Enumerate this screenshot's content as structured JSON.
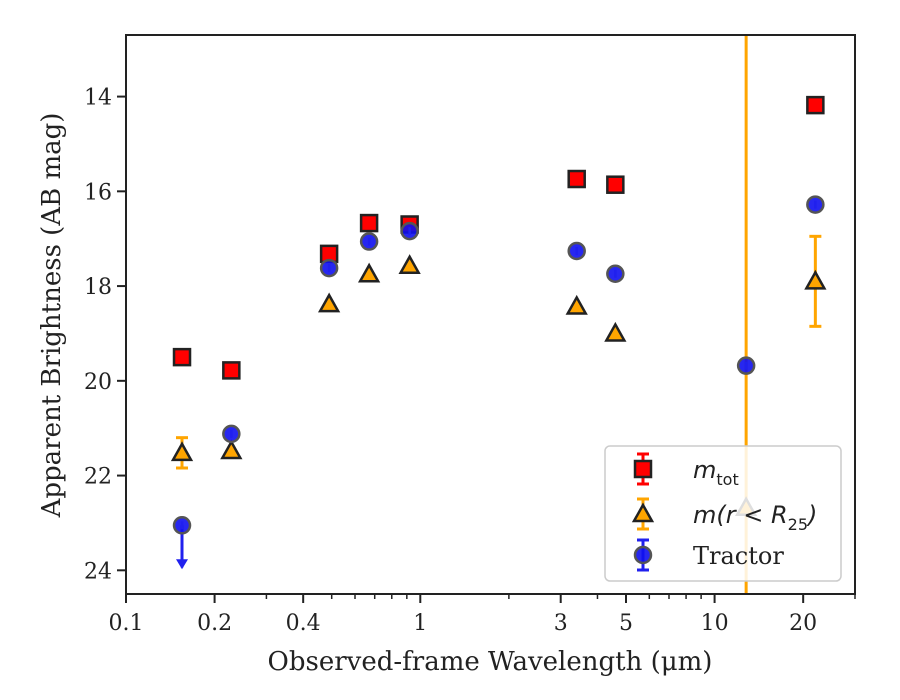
{
  "chart_data": {
    "type": "scatter",
    "title": "",
    "xlabel": "Observed-frame Wavelength (μm)",
    "ylabel": "Apparent Brightness (AB mag)",
    "xscale": "log",
    "xlim": [
      0.1,
      30
    ],
    "ylim": [
      24.5,
      12.7
    ],
    "y_inverted": true,
    "x_ticks": [
      0.1,
      0.2,
      0.4,
      1,
      3,
      5,
      10,
      20
    ],
    "x_tick_labels": [
      "0.1",
      "0.2",
      "0.4",
      "1",
      "3",
      "5",
      "10",
      "20"
    ],
    "y_ticks": [
      14,
      16,
      18,
      20,
      22,
      24
    ],
    "y_tick_labels": [
      "14",
      "16",
      "18",
      "20",
      "22",
      "24"
    ],
    "grid": false,
    "legend_position": "lower-right",
    "vertical_line": {
      "x": 12.8,
      "color": "#FFA500"
    },
    "series": [
      {
        "name": "m_tot",
        "marker": "square",
        "face_color": "#FF0000",
        "edge_color": "#222222",
        "errorbar_color": "#FF0000",
        "points": [
          {
            "x": 0.155,
            "y": 19.5
          },
          {
            "x": 0.228,
            "y": 19.78
          },
          {
            "x": 0.49,
            "y": 17.32
          },
          {
            "x": 0.67,
            "y": 16.67
          },
          {
            "x": 0.92,
            "y": 16.7
          },
          {
            "x": 3.4,
            "y": 15.74
          },
          {
            "x": 4.6,
            "y": 15.86
          },
          {
            "x": 22.0,
            "y": 14.18
          }
        ]
      },
      {
        "name": "m(r<R25)",
        "marker": "triangle",
        "face_color": "#FFA500",
        "edge_color": "#222222",
        "errorbar_color": "#FFA500",
        "points": [
          {
            "x": 0.155,
            "y": 21.52,
            "yerr": 0.32
          },
          {
            "x": 0.228,
            "y": 21.48
          },
          {
            "x": 0.49,
            "y": 18.38
          },
          {
            "x": 0.67,
            "y": 17.75
          },
          {
            "x": 0.92,
            "y": 17.57
          },
          {
            "x": 3.4,
            "y": 18.43
          },
          {
            "x": 4.6,
            "y": 19.0
          },
          {
            "x": 12.8,
            "y": 22.68
          },
          {
            "x": 22.0,
            "y": 17.9,
            "yerr": 0.95
          }
        ]
      },
      {
        "name": "Tractor",
        "marker": "circle",
        "face_color": "#1010EE",
        "edge_color": "#555555",
        "errorbar_color": "#2020EE",
        "points": [
          {
            "x": 0.155,
            "y": 23.05,
            "upper_limit": true
          },
          {
            "x": 0.228,
            "y": 21.12
          },
          {
            "x": 0.49,
            "y": 17.62
          },
          {
            "x": 0.67,
            "y": 17.06
          },
          {
            "x": 0.92,
            "y": 16.84
          },
          {
            "x": 3.4,
            "y": 17.26
          },
          {
            "x": 4.6,
            "y": 17.74
          },
          {
            "x": 12.8,
            "y": 19.68
          },
          {
            "x": 22.0,
            "y": 16.28
          }
        ]
      }
    ],
    "legend": [
      {
        "main": "m",
        "sub": "tot",
        "rest": ""
      },
      {
        "main": "m(r < R",
        "sub": "25",
        "rest": ")"
      },
      {
        "main": "Tractor",
        "sub": "",
        "rest": ""
      }
    ]
  }
}
